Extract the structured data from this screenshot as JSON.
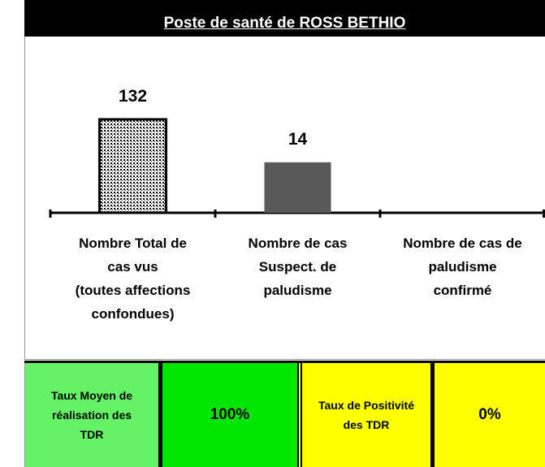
{
  "chart_data": {
    "type": "bar",
    "title": "Poste de santé de ROSS BETHIO",
    "categories": [
      "Nombre Total de\ncas vus\n(toutes affections\nconfondues)",
      "Nombre de cas\nSuspect. de\npaludisme",
      "Nombre de cas de\npaludisme\nconfirmé"
    ],
    "values": [
      132,
      14,
      null
    ],
    "colors": [
      "#000000",
      "#595959",
      "#595959"
    ],
    "patterns": [
      "dots",
      "solid",
      "solid"
    ],
    "ylim": [
      1,
      10000
    ],
    "log_scale": true
  },
  "indicators": [
    {
      "label": "Taux Moyen de\nréalisation des\nTDR",
      "value": "100%",
      "label_color": "#66f266",
      "value_color": "#00e600"
    },
    {
      "label": "Taux de Positivité\ndes TDR",
      "value": "0%",
      "label_color": "#ffff00",
      "value_color": "#ffff00"
    }
  ]
}
